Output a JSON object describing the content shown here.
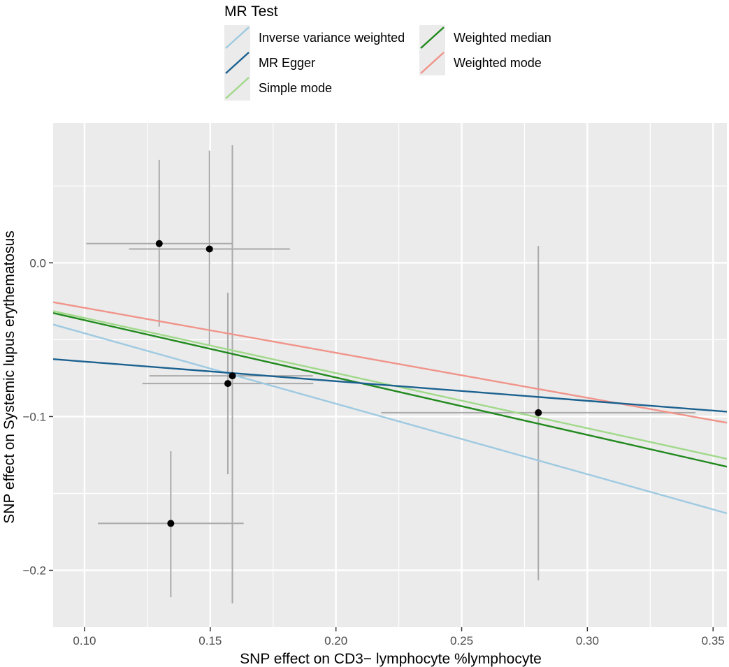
{
  "chart_data": {
    "type": "scatter",
    "title": "",
    "xlabel": "SNP effect on CD3− lymphocyte %lymphocyte",
    "ylabel": "SNP effect on Systemic lupus erythematosus",
    "xlim": [
      0.0875,
      0.3555
    ],
    "ylim": [
      -0.237,
      0.091
    ],
    "x_ticks": [
      0.1,
      0.15,
      0.2,
      0.25,
      0.3,
      0.35
    ],
    "x_tick_labels": [
      "0.10",
      "0.15",
      "0.20",
      "0.25",
      "0.30",
      "0.35"
    ],
    "y_ticks": [
      0.0,
      -0.1,
      -0.2
    ],
    "y_tick_labels": [
      "0.0",
      "−0.1",
      "−0.2"
    ],
    "grid": true,
    "points": [
      {
        "x": 0.1297,
        "y": 0.0125,
        "x_low": 0.1007,
        "x_high": 0.1587,
        "y_low": -0.0415,
        "y_high": 0.067
      },
      {
        "x": 0.1497,
        "y": 0.009,
        "x_low": 0.1177,
        "x_high": 0.1817,
        "y_low": -0.054,
        "y_high": 0.073
      },
      {
        "x": 0.1588,
        "y": -0.0735,
        "x_low": 0.1258,
        "x_high": 0.1908,
        "y_low": -0.2215,
        "y_high": 0.0765
      },
      {
        "x": 0.157,
        "y": -0.0785,
        "x_low": 0.123,
        "x_high": 0.191,
        "y_low": -0.1375,
        "y_high": -0.0195
      },
      {
        "x": 0.1343,
        "y": -0.1695,
        "x_low": 0.1053,
        "x_high": 0.1633,
        "y_low": -0.2175,
        "y_high": -0.1225
      },
      {
        "x": 0.2805,
        "y": -0.0975,
        "x_low": 0.218,
        "x_high": 0.343,
        "y_low": -0.2065,
        "y_high": 0.011
      }
    ],
    "legend": {
      "title": "MR Test",
      "position": "top",
      "entries": [
        {
          "name": "Inverse variance weighted",
          "color": "#9ecae1"
        },
        {
          "name": "MR Egger",
          "color": "#1b6190"
        },
        {
          "name": "Simple mode",
          "color": "#a1d98a"
        },
        {
          "name": "Weighted median",
          "color": "#21891e"
        },
        {
          "name": "Weighted mode",
          "color": "#f0948a"
        }
      ]
    },
    "series": [
      {
        "name": "Inverse variance weighted",
        "color": "#9ecae1",
        "intercept": 0.0,
        "slope": -0.4583
      },
      {
        "name": "MR Egger",
        "color": "#1b6190",
        "intercept": -0.0515,
        "slope": -0.1275
      },
      {
        "name": "Simple mode",
        "color": "#a1d98a",
        "intercept": 0.0,
        "slope": -0.3586
      },
      {
        "name": "Weighted median",
        "color": "#21891e",
        "intercept": 0.0,
        "slope": -0.373
      },
      {
        "name": "Weighted mode",
        "color": "#f0948a",
        "intercept": 0.0,
        "slope": -0.2926
      }
    ]
  }
}
